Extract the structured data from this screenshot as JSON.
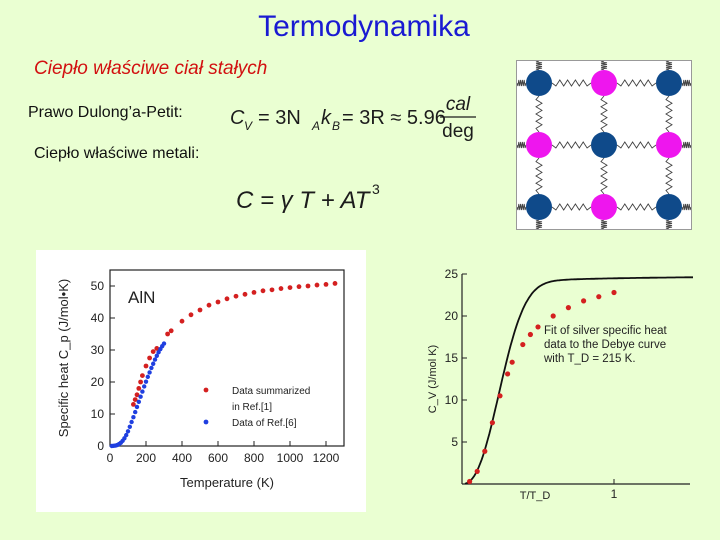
{
  "slide": {
    "title": "Termodynamika",
    "subtitle": "Ciepło właściwe ciał stałych",
    "dulong_label": "Prawo Dulong’a-Petit:",
    "metals_label": "Ciepło właściwe metali:",
    "dulong_formula": {
      "lhs": "C",
      "lhs_sub": "V",
      "eq1": "= 3N",
      "sub_a": "A",
      "k": "k",
      "sub_b": "B",
      "eq2": "= 3R ≈ 5.96",
      "unit_num": "cal",
      "unit_den": "deg"
    },
    "metal_formula": {
      "text": "C = γ T + AT",
      "exponent": "3"
    }
  },
  "lattice": {
    "colors": {
      "blue": "#0f4a8a",
      "magenta": "#ee16ee"
    },
    "rows": [
      [
        "blue",
        "magenta",
        "blue"
      ],
      [
        "magenta",
        "blue",
        "magenta"
      ],
      [
        "blue",
        "magenta",
        "blue"
      ]
    ]
  },
  "chart_data": [
    {
      "type": "scatter",
      "title": "AlN",
      "xlabel": "Temperature (K)",
      "ylabel": "Specific heat  C_p (J/mol•K)",
      "xlim": [
        0,
        1300
      ],
      "ylim": [
        0,
        55
      ],
      "xticks": [
        "0",
        "200",
        "400",
        "600",
        "800",
        "1000",
        "1200"
      ],
      "yticks": [
        "0",
        "10",
        "20",
        "30",
        "40",
        "50"
      ],
      "legend_position": "bottom-right",
      "series": [
        {
          "name": "Data summarized\n in Ref.[1]",
          "color": "#d42020",
          "points": [
            [
              130,
              13
            ],
            [
              140,
              14.5
            ],
            [
              150,
              16
            ],
            [
              160,
              18
            ],
            [
              170,
              20
            ],
            [
              180,
              22
            ],
            [
              200,
              25
            ],
            [
              220,
              27.5
            ],
            [
              240,
              29.5
            ],
            [
              260,
              30.5
            ],
            [
              320,
              35
            ],
            [
              340,
              36
            ],
            [
              400,
              39
            ],
            [
              450,
              41
            ],
            [
              500,
              42.5
            ],
            [
              550,
              44
            ],
            [
              600,
              45
            ],
            [
              650,
              46
            ],
            [
              700,
              46.8
            ],
            [
              750,
              47.4
            ],
            [
              800,
              48
            ],
            [
              850,
              48.5
            ],
            [
              900,
              48.8
            ],
            [
              950,
              49.2
            ],
            [
              1000,
              49.5
            ],
            [
              1050,
              49.8
            ],
            [
              1100,
              50
            ],
            [
              1150,
              50.3
            ],
            [
              1200,
              50.5
            ],
            [
              1250,
              50.8
            ]
          ]
        },
        {
          "name": "Data of Ref.[6]",
          "color": "#1f3fe0",
          "points": [
            [
              10,
              0
            ],
            [
              20,
              0.05
            ],
            [
              30,
              0.15
            ],
            [
              40,
              0.3
            ],
            [
              50,
              0.6
            ],
            [
              60,
              1
            ],
            [
              70,
              1.6
            ],
            [
              80,
              2.4
            ],
            [
              90,
              3.4
            ],
            [
              100,
              4.6
            ],
            [
              110,
              6
            ],
            [
              120,
              7.5
            ],
            [
              130,
              9
            ],
            [
              140,
              10.6
            ],
            [
              150,
              12.2
            ],
            [
              160,
              13.8
            ],
            [
              170,
              15.4
            ],
            [
              180,
              17
            ],
            [
              190,
              18.6
            ],
            [
              200,
              20.1
            ],
            [
              210,
              21.6
            ],
            [
              220,
              23
            ],
            [
              230,
              24.4
            ],
            [
              240,
              25.7
            ],
            [
              250,
              27
            ],
            [
              260,
              28.2
            ],
            [
              270,
              29.3
            ],
            [
              280,
              30.3
            ],
            [
              290,
              31.2
            ],
            [
              300,
              32
            ]
          ]
        }
      ]
    },
    {
      "type": "line",
      "xlabel": "T/T_D",
      "ylabel": "C_V (J/mol K)",
      "xlim": [
        0,
        1.5
      ],
      "ylim": [
        0,
        25
      ],
      "yticks": [
        "5",
        "10",
        "15",
        "20",
        "25"
      ],
      "xticks": [
        "1"
      ],
      "annotation": "Fit of silver specific heat\ndata to the Debye curve\nwith T_D = 215 K.",
      "series": [
        {
          "name": "",
          "color": "#d42020",
          "points": [
            [
              0.05,
              0.3
            ],
            [
              0.1,
              1.5
            ],
            [
              0.15,
              3.9
            ],
            [
              0.2,
              7.3
            ],
            [
              0.25,
              10.5
            ],
            [
              0.3,
              13.1
            ],
            [
              0.33,
              14.5
            ],
            [
              0.4,
              16.6
            ],
            [
              0.45,
              17.8
            ],
            [
              0.5,
              18.7
            ],
            [
              0.6,
              20
            ],
            [
              0.7,
              21
            ],
            [
              0.8,
              21.8
            ],
            [
              0.9,
              22.3
            ],
            [
              1.0,
              22.8
            ]
          ]
        },
        {
          "name": "",
          "color": "#111111",
          "curve": "debye"
        }
      ]
    }
  ]
}
